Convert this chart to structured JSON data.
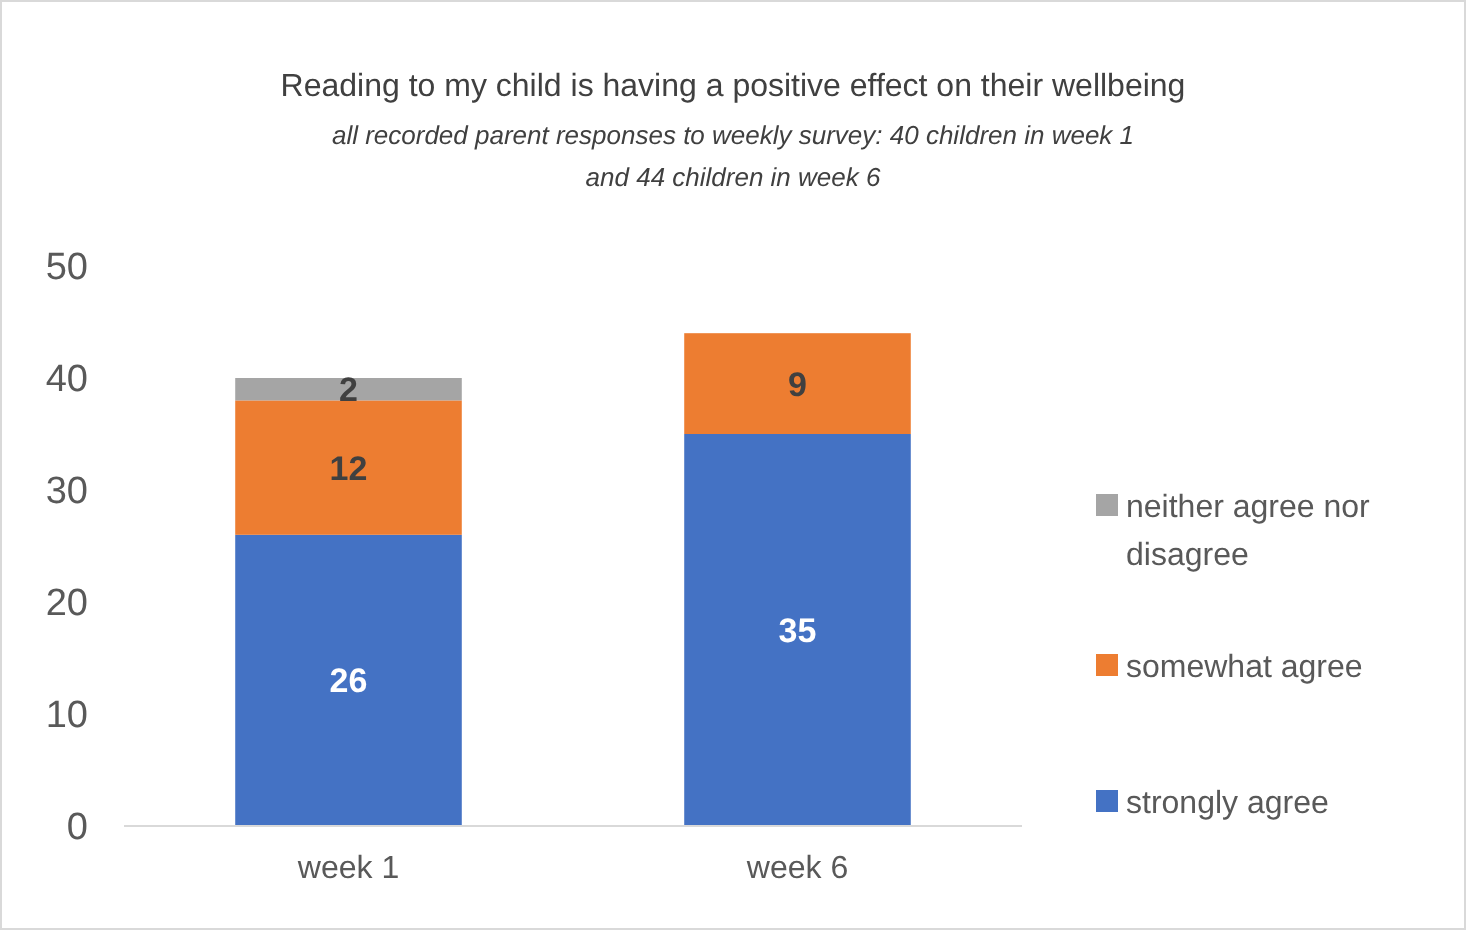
{
  "chart_data": {
    "type": "bar",
    "title": "Reading to my child is having a positive effect on their wellbeing",
    "subtitle": "all recorded parent responses to weekly survey: 40 children in week 1 and 44 children in week 6",
    "categories": [
      "week 1",
      "week 6"
    ],
    "stacked": true,
    "series": [
      {
        "name": "strongly agree",
        "color": "#4472c4",
        "values": [
          26,
          35
        ]
      },
      {
        "name": "somewhat agree",
        "color": "#ed7d31",
        "values": [
          12,
          9
        ]
      },
      {
        "name": "neither agree nor disagree",
        "color": "#a5a5a5",
        "values": [
          2,
          null
        ]
      }
    ],
    "ylim": [
      0,
      50
    ],
    "yticks": [
      0,
      10,
      20,
      30,
      40,
      50
    ],
    "data_labels": true,
    "legend": "right",
    "grid": false
  }
}
